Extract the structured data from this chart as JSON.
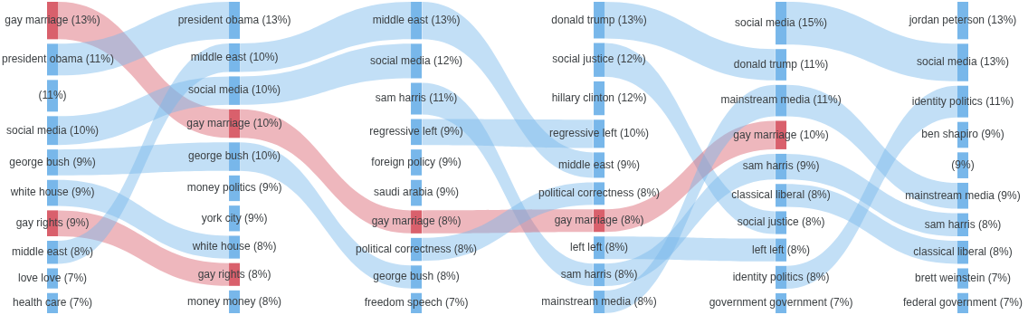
{
  "chart_data": [
    {
      "type": "other",
      "categories": [
        "gay marriage",
        "president obama",
        null,
        "social media",
        "george bush",
        "white house",
        "gay rights",
        "middle east",
        "love love",
        "health care"
      ],
      "values": [
        13,
        11,
        11,
        10,
        9,
        9,
        9,
        8,
        7,
        7
      ],
      "value_labels": [
        "(13%)",
        "(11%)",
        "(11%)",
        "(10%)",
        "(9%)",
        "(9%)",
        "(9%)",
        "(8%)",
        "(7%)",
        "(7%)"
      ],
      "colors": [
        "#d9606c",
        "#78b7ea",
        "#78b7ea",
        "#78b7ea",
        "#78b7ea",
        "#78b7ea",
        "#d9606c",
        "#78b7ea",
        "#78b7ea",
        "#78b7ea"
      ]
    },
    {
      "type": "other",
      "categories": [
        "president obama",
        "middle east",
        "social media",
        "gay marriage",
        "george bush",
        "money politics",
        "york city",
        "white house",
        "gay rights",
        "money money"
      ],
      "values": [
        13,
        10,
        10,
        10,
        10,
        9,
        9,
        8,
        8,
        8
      ],
      "value_labels": [
        "(13%)",
        "(10%)",
        "(10%)",
        "(10%)",
        "(10%)",
        "(9%)",
        "(9%)",
        "(8%)",
        "(8%)",
        "(8%)"
      ],
      "colors": [
        "#78b7ea",
        "#78b7ea",
        "#78b7ea",
        "#d9606c",
        "#78b7ea",
        "#78b7ea",
        "#78b7ea",
        "#78b7ea",
        "#d9606c",
        "#78b7ea"
      ]
    },
    {
      "type": "other",
      "categories": [
        "middle east",
        "social media",
        "sam harris",
        "regressive left",
        "foreign policy",
        "saudi arabia",
        "gay marriage",
        "political correctness",
        "george bush",
        "freedom speech"
      ],
      "values": [
        13,
        12,
        11,
        9,
        9,
        9,
        8,
        8,
        8,
        7
      ],
      "value_labels": [
        "(13%)",
        "(12%)",
        "(11%)",
        "(9%)",
        "(9%)",
        "(9%)",
        "(8%)",
        "(8%)",
        "(8%)",
        "(7%)"
      ],
      "colors": [
        "#78b7ea",
        "#78b7ea",
        "#78b7ea",
        "#78b7ea",
        "#78b7ea",
        "#78b7ea",
        "#d9606c",
        "#78b7ea",
        "#78b7ea",
        "#78b7ea"
      ]
    },
    {
      "type": "other",
      "categories": [
        "donald trump",
        "social justice",
        "hillary clinton",
        "regressive left",
        "middle east",
        "political correctness",
        "gay marriage",
        "left left",
        "sam harris",
        "mainstream media"
      ],
      "values": [
        13,
        12,
        12,
        10,
        9,
        8,
        8,
        8,
        8,
        8
      ],
      "value_labels": [
        "(13%)",
        "(12%)",
        "(12%)",
        "(10%)",
        "(9%)",
        "(8%)",
        "(8%)",
        "(8%)",
        "(8%)",
        "(8%)"
      ],
      "colors": [
        "#78b7ea",
        "#78b7ea",
        "#78b7ea",
        "#78b7ea",
        "#78b7ea",
        "#78b7ea",
        "#d9606c",
        "#78b7ea",
        "#78b7ea",
        "#78b7ea"
      ]
    },
    {
      "type": "other",
      "categories": [
        "social media",
        "donald trump",
        "mainstream media",
        "gay marriage",
        "sam harris",
        "classical liberal",
        "social justice",
        "left left",
        "identity politics",
        "government government"
      ],
      "values": [
        15,
        11,
        11,
        10,
        9,
        8,
        8,
        8,
        8,
        7
      ],
      "value_labels": [
        "(15%)",
        "(11%)",
        "(11%)",
        "(10%)",
        "(9%)",
        "(8%)",
        "(8%)",
        "(8%)",
        "(8%)",
        "(7%)"
      ],
      "colors": [
        "#78b7ea",
        "#78b7ea",
        "#78b7ea",
        "#d9606c",
        "#78b7ea",
        "#78b7ea",
        "#78b7ea",
        "#78b7ea",
        "#78b7ea",
        "#78b7ea"
      ]
    },
    {
      "type": "other",
      "categories": [
        "jordan peterson",
        "social media",
        "identity politics",
        "ben shapiro",
        null,
        "mainstream media",
        "sam harris",
        "classical liberal",
        "brett weinstein",
        "federal government"
      ],
      "values": [
        13,
        13,
        11,
        9,
        9,
        9,
        8,
        8,
        7,
        7
      ],
      "value_labels": [
        "(13%)",
        "(13%)",
        "(11%)",
        "(9%)",
        "(9%)",
        "(9%)",
        "(8%)",
        "(8%)",
        "(7%)",
        "(7%)"
      ],
      "colors": [
        "#78b7ea",
        "#78b7ea",
        "#78b7ea",
        "#78b7ea",
        "#78b7ea",
        "#78b7ea",
        "#78b7ea",
        "#78b7ea",
        "#78b7ea",
        "#78b7ea"
      ]
    }
  ]
}
